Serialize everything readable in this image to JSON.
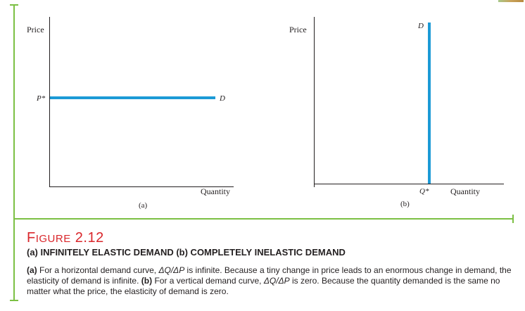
{
  "figure": {
    "number": "2.12",
    "title_word_cap": "F",
    "title_word_rest": "IGURE",
    "subtitle": "(a) INFINITELY ELASTIC DEMAND (b) COMPLETELY INELASTIC DEMAND",
    "caption": {
      "a_label": "(a)",
      "a_text_1": "For a horizontal demand curve, ",
      "a_formula": "ΔQ/ΔP",
      "a_text_2": " is infinite. Because a tiny change in price leads to an enormous change in demand, the elasticity of demand is infinite.",
      "b_label": "(b)",
      "b_text_1": "For a vertical demand curve, ",
      "b_formula": "ΔQ/ΔP",
      "b_text_2": " is zero. Because the quantity demanded is the same no matter what the price, the elasticity of demand is zero."
    }
  },
  "colors": {
    "accent_green": "#7cc044",
    "curve_blue": "#1c9ad6",
    "title_red": "#d9262b"
  },
  "chart_data": [
    {
      "type": "line",
      "panel_label": "(a)",
      "ylabel": "Price",
      "xlabel": "Quantity",
      "y_tick_label": "P*",
      "series": [
        {
          "name": "D",
          "shape": "horizontal",
          "at_price": "P*"
        }
      ],
      "grid": false
    },
    {
      "type": "line",
      "panel_label": "(b)",
      "ylabel": "Price",
      "xlabel": "Quantity",
      "x_tick_label": "Q*",
      "series": [
        {
          "name": "D",
          "shape": "vertical",
          "at_quantity": "Q*"
        }
      ],
      "grid": false
    }
  ]
}
